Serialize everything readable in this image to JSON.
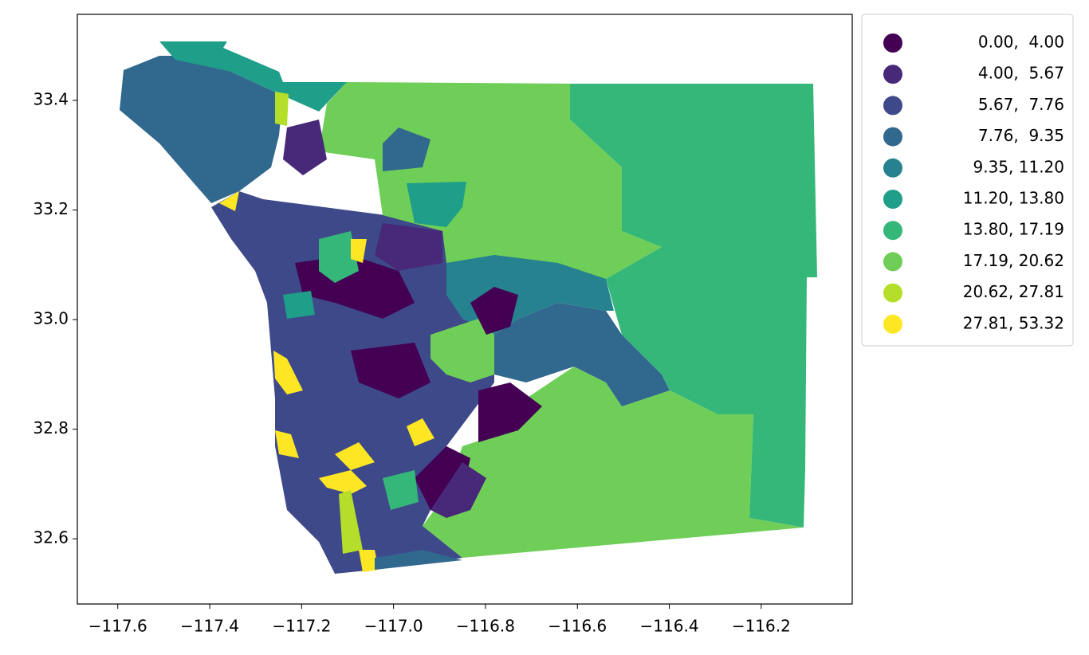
{
  "chart_data": {
    "type": "choropleth",
    "xlim": [
      -117.688,
      -116.002
    ],
    "ylim": [
      32.481,
      33.557
    ],
    "xticks": [
      {
        "value": -117.6,
        "label": "−117.6"
      },
      {
        "value": -117.4,
        "label": "−117.4"
      },
      {
        "value": -117.2,
        "label": "−117.2"
      },
      {
        "value": -117.0,
        "label": "−117.0"
      },
      {
        "value": -116.8,
        "label": "−116.8"
      },
      {
        "value": -116.6,
        "label": "−116.6"
      },
      {
        "value": -116.4,
        "label": "−116.4"
      },
      {
        "value": -116.2,
        "label": "−116.2"
      }
    ],
    "yticks": [
      32.6,
      32.8,
      {
        "value": 33.0,
        "label": "33.0"
      },
      33.2,
      33.4
    ],
    "legend": {
      "position": "outside upper right",
      "items": [
        {
          "label": " 0.00,  4.00",
          "color": "#440154"
        },
        {
          "label": " 4.00,  5.67",
          "color": "#482878"
        },
        {
          "label": " 5.67,  7.76",
          "color": "#3e4989"
        },
        {
          "label": " 7.76,  9.35",
          "color": "#31688e"
        },
        {
          "label": " 9.35, 11.20",
          "color": "#26828e"
        },
        {
          "label": "11.20, 13.80",
          "color": "#1f9e89"
        },
        {
          "label": "13.80, 17.19",
          "color": "#35b779"
        },
        {
          "label": "17.19, 20.62",
          "color": "#6ece58"
        },
        {
          "label": "20.62, 27.81",
          "color": "#b5de2b"
        },
        {
          "label": "27.81, 53.32",
          "color": "#fde725"
        }
      ]
    }
  }
}
